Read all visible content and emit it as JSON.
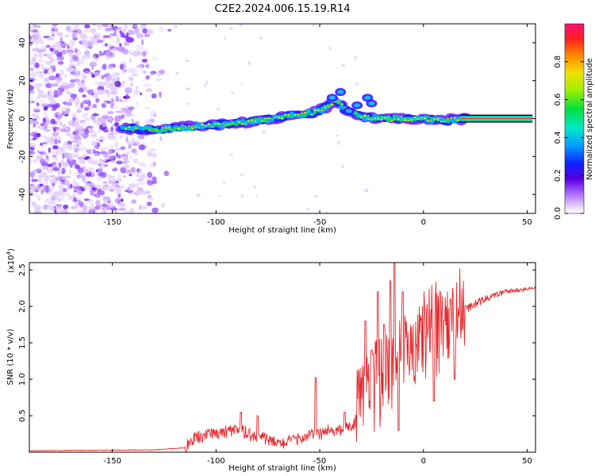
{
  "title": "C2E2.2024.006.15.19.R14",
  "colors": {
    "snr_line": "#e8262a",
    "ridge_core": "#d8102f",
    "axis": "#000000"
  },
  "chart_data": [
    {
      "type": "heatmap",
      "xlabel": "Height of straight line (km)",
      "ylabel": "Frequency (Hz)",
      "xlim": [
        -190,
        54
      ],
      "ylim": [
        -50,
        50
      ],
      "xticks": [
        -150,
        -100,
        -50,
        0,
        50
      ],
      "yticks": [
        -40,
        -20,
        0,
        20,
        40
      ],
      "colorbar": {
        "label": "Normalized spectral amplitude",
        "range": [
          0.0,
          1.0
        ],
        "ticks": [
          0.0,
          0.2,
          0.4,
          0.6,
          0.8
        ]
      },
      "ridge": [
        {
          "x": -145,
          "y": -5
        },
        {
          "x": -130,
          "y": -6
        },
        {
          "x": -110,
          "y": -4
        },
        {
          "x": -95,
          "y": -3
        },
        {
          "x": -80,
          "y": -1
        },
        {
          "x": -60,
          "y": 2
        },
        {
          "x": -50,
          "y": 4
        },
        {
          "x": -42,
          "y": 10
        },
        {
          "x": -38,
          "y": 5
        },
        {
          "x": -30,
          "y": 1
        },
        {
          "x": -20,
          "y": 0
        },
        {
          "x": -10,
          "y": 0
        },
        {
          "x": 0,
          "y": 0
        },
        {
          "x": 10,
          "y": -1
        },
        {
          "x": 20,
          "y": 0
        },
        {
          "x": 52,
          "y": 0
        }
      ],
      "noise_region": {
        "x_from": -190,
        "x_to": -130
      }
    },
    {
      "type": "line",
      "xlabel": "Height of straight line (km)",
      "ylabel": "SNR (10 * v/v)",
      "y_multiplier_label": "(x10",
      "y_multiplier_exp": "4",
      "xlim": [
        -190,
        54
      ],
      "ylim": [
        0,
        2.6
      ],
      "xticks": [
        -150,
        -100,
        -50,
        0,
        50
      ],
      "yticks": [
        0.5,
        1.0,
        1.5,
        2.0,
        2.5
      ],
      "y_tick_labels": [
        "0.5",
        "1.0",
        "1.5",
        "2.0",
        "2.5"
      ],
      "envelope": [
        {
          "x": -190,
          "y": 0.02
        },
        {
          "x": -130,
          "y": 0.03
        },
        {
          "x": -115,
          "y": 0.06
        },
        {
          "x": -110,
          "y": 0.18
        },
        {
          "x": -100,
          "y": 0.25
        },
        {
          "x": -90,
          "y": 0.28
        },
        {
          "x": -80,
          "y": 0.22
        },
        {
          "x": -70,
          "y": 0.1
        },
        {
          "x": -60,
          "y": 0.18
        },
        {
          "x": -50,
          "y": 0.25
        },
        {
          "x": -40,
          "y": 0.3
        },
        {
          "x": -33,
          "y": 0.35
        },
        {
          "x": -30,
          "y": 0.7
        },
        {
          "x": -25,
          "y": 0.9
        },
        {
          "x": -20,
          "y": 1.0
        },
        {
          "x": -15,
          "y": 1.1
        },
        {
          "x": -10,
          "y": 1.25
        },
        {
          "x": 0,
          "y": 1.5
        },
        {
          "x": 10,
          "y": 1.7
        },
        {
          "x": 20,
          "y": 1.95
        },
        {
          "x": 30,
          "y": 2.1
        },
        {
          "x": 40,
          "y": 2.2
        },
        {
          "x": 54,
          "y": 2.25
        }
      ],
      "peaks": [
        {
          "x": -88,
          "y": 0.55
        },
        {
          "x": -80,
          "y": 0.5
        },
        {
          "x": -52,
          "y": 1.02
        },
        {
          "x": -38,
          "y": 0.55
        },
        {
          "x": -28,
          "y": 1.8
        },
        {
          "x": -25,
          "y": 1.4
        },
        {
          "x": -22,
          "y": 2.2
        },
        {
          "x": -19,
          "y": 1.75
        },
        {
          "x": -16,
          "y": 2.35
        },
        {
          "x": -14,
          "y": 2.6
        },
        {
          "x": -12,
          "y": 2.6
        },
        {
          "x": -10,
          "y": 2.2
        },
        {
          "x": 8,
          "y": 2.2
        },
        {
          "x": 10,
          "y": 1.8
        },
        {
          "x": 13,
          "y": 2.1
        }
      ],
      "dips": [
        {
          "x": -12,
          "y": 0.3
        },
        {
          "x": 5,
          "y": 0.7
        },
        {
          "x": 15,
          "y": 1.0
        }
      ]
    }
  ]
}
